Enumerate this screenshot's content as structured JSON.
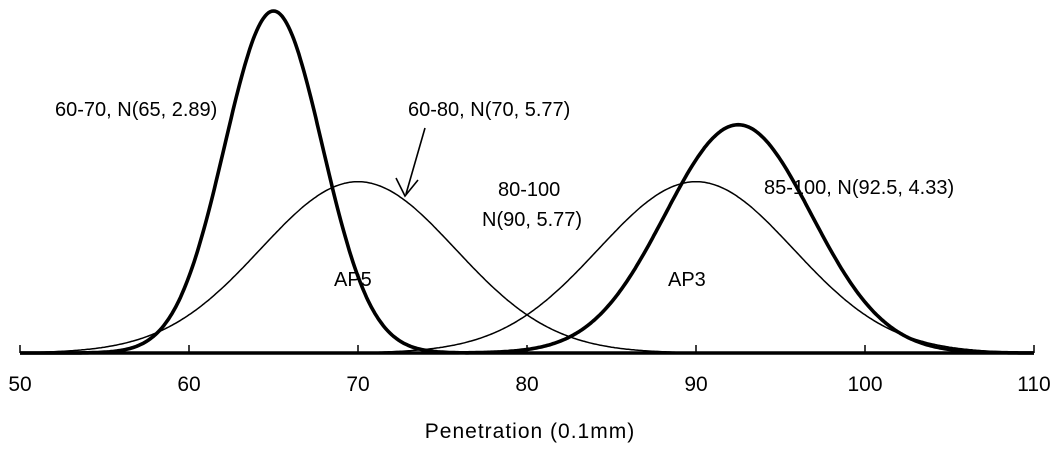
{
  "chart_data": {
    "type": "line",
    "title": "",
    "xlabel": "Penetration (0.1mm)",
    "ylabel": "",
    "xlim": [
      50,
      110
    ],
    "xticks": [
      50,
      60,
      70,
      80,
      90,
      100,
      110
    ],
    "grid": false,
    "legend": "none",
    "series": [
      {
        "name": "60-70, N(65, 2.89)",
        "mean": 65,
        "sd": 2.89,
        "weight": "bold",
        "color": "#000000"
      },
      {
        "name": "60-80, N(70, 5.77)",
        "mean": 70,
        "sd": 5.77,
        "weight": "thin",
        "color": "#000000"
      },
      {
        "name": "80-100 N(90, 5.77)",
        "mean": 90,
        "sd": 5.77,
        "weight": "thin",
        "color": "#000000"
      },
      {
        "name": "85-100, N(92.5, 4.33)",
        "mean": 92.5,
        "sd": 4.33,
        "weight": "bold",
        "color": "#000000"
      }
    ],
    "annotations": {
      "label_6070": "60-70, N(65, 2.89)",
      "label_6080": "60-80, N(70, 5.77)",
      "label_80100_line1": "80-100",
      "label_80100_line2": "N(90, 5.77)",
      "label_85100": "85-100, N(92.5, 4.33)",
      "ap5": "AP5",
      "ap3": "AP3"
    }
  }
}
